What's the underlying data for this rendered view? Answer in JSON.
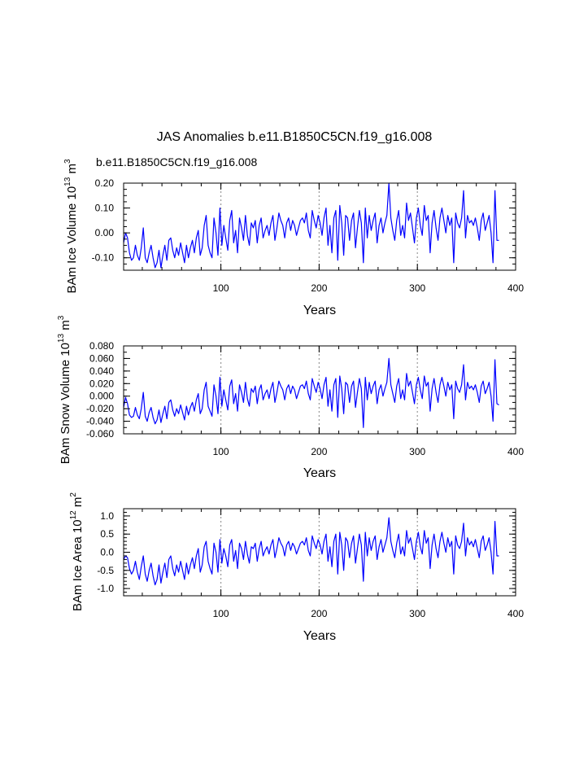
{
  "figure": {
    "title": "JAS Anomalies b.e11.B1850C5CN.f19_g16.008",
    "case_label": "b.e11.B1850C5CN.f19_g16.008"
  },
  "colors": {
    "series": "#0000ff",
    "axes": "#000000",
    "refline": "#999999",
    "case_label": "#0000ff"
  },
  "chart_data": [
    {
      "type": "line",
      "name": "ice-volume",
      "ylabel": {
        "main": "BAm Ice Volume 10",
        "sup": "13",
        "unit": " m",
        "unit_sup": "3"
      },
      "xlabel": "Years",
      "xlim": [
        1,
        400
      ],
      "ylim": [
        -0.15,
        0.2
      ],
      "xticks": [
        100,
        200,
        300,
        400
      ],
      "xtick_labels": [
        "100",
        "200",
        "300",
        "400"
      ],
      "yticks": [
        -0.1,
        0.0,
        0.1,
        0.2
      ],
      "ytick_labels": [
        "-0.10",
        "0.00",
        "0.10",
        "0.20"
      ],
      "yminor": 0.025,
      "xminor": 20,
      "ref_lines_x": [
        100,
        200,
        300
      ],
      "series_name": "ice volume anomaly",
      "x_start": 1,
      "x_step": 2,
      "values": [
        -0.04,
        0.0,
        -0.02,
        -0.08,
        -0.11,
        -0.1,
        -0.05,
        -0.09,
        -0.11,
        -0.06,
        0.02,
        -0.1,
        -0.12,
        -0.08,
        -0.05,
        -0.1,
        -0.14,
        -0.12,
        -0.07,
        -0.14,
        -0.09,
        -0.05,
        -0.11,
        -0.03,
        -0.02,
        -0.07,
        -0.1,
        -0.06,
        -0.09,
        -0.04,
        -0.08,
        -0.12,
        -0.05,
        -0.1,
        -0.06,
        -0.03,
        -0.08,
        -0.02,
        0.01,
        -0.09,
        -0.06,
        0.03,
        0.07,
        -0.05,
        -0.08,
        -0.1,
        0.06,
        0.0,
        -0.09,
        0.1,
        -0.05,
        0.03,
        -0.02,
        -0.07,
        0.05,
        0.09,
        -0.04,
        0.01,
        -0.08,
        0.06,
        0.02,
        -0.03,
        0.07,
        -0.01,
        -0.05,
        0.04,
        0.02,
        0.05,
        -0.04,
        0.03,
        0.06,
        -0.02,
        0.01,
        0.03,
        -0.01,
        0.04,
        0.07,
        -0.03,
        0.02,
        0.08,
        0.05,
        0.03,
        -0.02,
        0.04,
        0.06,
        0.01,
        0.05,
        0.03,
        -0.01,
        0.02,
        0.05,
        0.06,
        0.04,
        0.08,
        0.01,
        -0.02,
        0.09,
        0.05,
        0.02,
        0.07,
        0.04,
        -0.01,
        0.06,
        0.1,
        -0.05,
        0.03,
        -0.08,
        0.06,
        0.09,
        -0.11,
        0.11,
        0.04,
        -0.09,
        0.07,
        0.06,
        -0.03,
        0.05,
        0.08,
        -0.06,
        0.02,
        0.09,
        0.04,
        -0.12,
        0.1,
        -0.02,
        0.07,
        0.01,
        0.05,
        0.08,
        -0.04,
        0.03,
        0.06,
        0.0,
        0.04,
        0.07,
        0.2,
        0.06,
        0.01,
        -0.03,
        0.05,
        0.09,
        -0.01,
        0.03,
        -0.02,
        0.12,
        0.05,
        0.08,
        0.02,
        -0.04,
        0.06,
        0.1,
        0.03,
        -0.01,
        0.11,
        0.05,
        0.07,
        -0.08,
        0.04,
        0.09,
        0.02,
        -0.03,
        0.06,
        0.1,
        0.05,
        0.0,
        0.07,
        0.03,
        0.06,
        -0.12,
        0.08,
        0.04,
        0.02,
        0.06,
        0.17,
        -0.02,
        0.07,
        0.04,
        0.05,
        0.03,
        0.06,
        0.02,
        -0.03,
        0.05,
        0.08,
        0.01,
        0.04,
        0.07,
        0.0,
        -0.12,
        0.17,
        -0.03,
        -0.03
      ]
    },
    {
      "type": "line",
      "name": "snow-volume",
      "ylabel": {
        "main": "BAm Snow Volume 10",
        "sup": "13",
        "unit": " m",
        "unit_sup": "3"
      },
      "xlabel": "Years",
      "xlim": [
        1,
        400
      ],
      "ylim": [
        -0.06,
        0.08
      ],
      "xticks": [
        100,
        200,
        300,
        400
      ],
      "xtick_labels": [
        "100",
        "200",
        "300",
        "400"
      ],
      "yticks": [
        -0.06,
        -0.04,
        -0.02,
        0.0,
        0.02,
        0.04,
        0.06,
        0.08
      ],
      "ytick_labels": [
        "-0.060",
        "-0.040",
        "-0.020",
        "0.000",
        "0.020",
        "0.040",
        "0.060",
        "0.080"
      ],
      "yminor": 0.01,
      "xminor": 20,
      "ref_lines_x": [
        100,
        200,
        300
      ],
      "series_name": "snow volume anomaly",
      "x_start": 1,
      "x_step": 2,
      "values": [
        -0.018,
        -0.002,
        -0.012,
        -0.03,
        -0.034,
        -0.032,
        -0.018,
        -0.03,
        -0.036,
        -0.02,
        0.006,
        -0.032,
        -0.04,
        -0.026,
        -0.018,
        -0.034,
        -0.044,
        -0.038,
        -0.022,
        -0.042,
        -0.028,
        -0.016,
        -0.036,
        -0.01,
        -0.006,
        -0.022,
        -0.032,
        -0.02,
        -0.028,
        -0.014,
        -0.026,
        -0.038,
        -0.016,
        -0.03,
        -0.018,
        -0.01,
        -0.024,
        -0.006,
        0.004,
        -0.028,
        -0.02,
        0.01,
        0.022,
        -0.016,
        -0.024,
        -0.032,
        0.018,
        0.0,
        -0.028,
        0.03,
        -0.016,
        0.01,
        -0.006,
        -0.022,
        0.016,
        0.026,
        -0.012,
        0.004,
        -0.024,
        0.018,
        0.006,
        -0.01,
        0.022,
        -0.004,
        -0.016,
        0.012,
        0.006,
        0.016,
        -0.012,
        0.01,
        0.018,
        -0.006,
        0.004,
        0.01,
        -0.004,
        0.012,
        0.022,
        -0.01,
        0.006,
        0.024,
        0.016,
        0.01,
        -0.006,
        0.012,
        0.018,
        0.004,
        0.016,
        0.01,
        -0.004,
        0.006,
        0.016,
        0.018,
        0.012,
        0.024,
        0.004,
        -0.006,
        0.028,
        0.016,
        0.006,
        0.022,
        0.012,
        -0.004,
        0.018,
        0.03,
        -0.016,
        0.01,
        -0.024,
        0.018,
        0.028,
        -0.034,
        0.032,
        0.012,
        -0.028,
        0.022,
        0.018,
        -0.01,
        0.016,
        0.024,
        -0.018,
        0.006,
        0.028,
        0.012,
        -0.05,
        0.03,
        -0.006,
        0.022,
        0.004,
        0.016,
        0.024,
        -0.012,
        0.01,
        0.018,
        0.0,
        0.012,
        0.022,
        0.06,
        0.018,
        0.004,
        -0.01,
        0.016,
        0.028,
        -0.004,
        0.01,
        -0.006,
        0.036,
        0.016,
        0.024,
        0.006,
        -0.012,
        0.018,
        0.03,
        0.01,
        -0.004,
        0.032,
        0.016,
        0.022,
        -0.024,
        0.012,
        0.028,
        0.006,
        -0.01,
        0.018,
        0.03,
        0.016,
        0.0,
        0.022,
        0.01,
        0.018,
        -0.036,
        0.024,
        0.012,
        0.006,
        0.018,
        0.05,
        -0.006,
        0.022,
        0.012,
        0.016,
        0.01,
        0.018,
        0.006,
        -0.01,
        0.016,
        0.024,
        0.004,
        0.012,
        0.022,
        0.0,
        -0.04,
        0.058,
        -0.012,
        -0.014
      ]
    },
    {
      "type": "line",
      "name": "ice-area",
      "ylabel": {
        "main": "BAm Ice Area 10",
        "sup": "12",
        "unit": " m",
        "unit_sup": "2"
      },
      "xlabel": "Years",
      "xlim": [
        1,
        400
      ],
      "ylim": [
        -1.2,
        1.2
      ],
      "xticks": [
        100,
        200,
        300,
        400
      ],
      "xtick_labels": [
        "100",
        "200",
        "300",
        "400"
      ],
      "yticks": [
        -1.0,
        -0.5,
        0.0,
        0.5,
        1.0
      ],
      "ytick_labels": [
        "-1.0",
        "-0.5",
        "0.0",
        "0.5",
        "1.0"
      ],
      "yminor": 0.1,
      "xminor": 20,
      "ref_lines_x": [
        100,
        200,
        300
      ],
      "series_name": "ice area anomaly",
      "x_start": 1,
      "x_step": 2,
      "values": [
        -0.2,
        -0.1,
        -0.15,
        -0.45,
        -0.6,
        -0.5,
        -0.25,
        -0.55,
        -0.75,
        -0.4,
        -0.1,
        -0.6,
        -0.8,
        -0.5,
        -0.3,
        -0.65,
        -0.9,
        -0.75,
        -0.35,
        -0.85,
        -0.55,
        -0.3,
        -0.7,
        -0.2,
        -0.1,
        -0.45,
        -0.65,
        -0.35,
        -0.55,
        -0.25,
        -0.5,
        -0.75,
        -0.3,
        -0.6,
        -0.35,
        -0.15,
        -0.45,
        -0.1,
        0.1,
        -0.55,
        -0.35,
        0.15,
        0.3,
        -0.25,
        -0.45,
        -0.6,
        0.25,
        0.0,
        -0.55,
        0.35,
        -0.3,
        0.1,
        -0.1,
        -0.4,
        0.2,
        0.35,
        -0.25,
        0.05,
        -0.45,
        0.25,
        0.1,
        -0.2,
        0.3,
        -0.05,
        -0.3,
        0.15,
        0.1,
        0.25,
        -0.25,
        0.1,
        0.3,
        -0.1,
        0.05,
        0.15,
        -0.05,
        0.2,
        0.35,
        -0.15,
        0.1,
        0.4,
        0.25,
        0.15,
        -0.1,
        0.2,
        0.3,
        0.05,
        0.25,
        0.15,
        -0.05,
        0.1,
        0.25,
        0.3,
        0.2,
        0.4,
        0.05,
        -0.1,
        0.45,
        0.25,
        0.1,
        0.35,
        0.2,
        -0.05,
        0.3,
        0.5,
        -0.25,
        0.15,
        -0.4,
        0.3,
        0.5,
        -0.6,
        0.55,
        0.2,
        -0.5,
        0.4,
        0.3,
        -0.15,
        0.25,
        0.45,
        -0.3,
        0.1,
        0.5,
        0.2,
        -0.8,
        0.55,
        -0.1,
        0.4,
        0.05,
        0.3,
        0.45,
        -0.2,
        0.15,
        0.35,
        0.0,
        0.2,
        0.4,
        0.95,
        0.3,
        0.05,
        -0.15,
        0.25,
        0.5,
        -0.05,
        0.15,
        -0.1,
        0.6,
        0.25,
        0.4,
        0.1,
        -0.2,
        0.3,
        0.55,
        0.15,
        -0.05,
        0.6,
        0.25,
        0.4,
        -0.45,
        0.2,
        0.5,
        0.1,
        -0.15,
        0.3,
        0.55,
        0.25,
        0.0,
        0.4,
        0.15,
        0.3,
        -0.6,
        0.45,
        0.2,
        0.1,
        0.3,
        0.8,
        -0.1,
        0.4,
        0.2,
        0.3,
        0.15,
        0.35,
        0.1,
        -0.15,
        0.3,
        0.45,
        0.05,
        0.2,
        0.4,
        0.0,
        -0.6,
        0.85,
        -0.1,
        -0.1
      ]
    }
  ]
}
